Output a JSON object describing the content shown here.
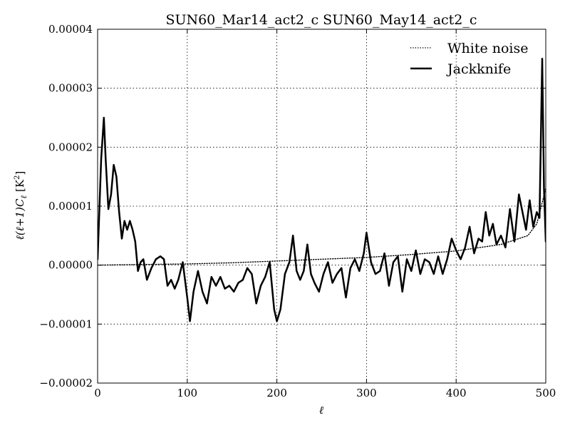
{
  "chart_data": {
    "type": "line",
    "title": "SUN60_Mar14_act2_c SUN60_May14_act2_c",
    "xlabel": "ℓ",
    "ylabel": "ℓ(ℓ+1)C",
    "ylabel_sub": "ℓ",
    "ylabel_units": "[K",
    "ylabel_units_sup": "2",
    "ylabel_units_close": "]",
    "xlim": [
      0,
      500
    ],
    "ylim": [
      -2e-05,
      4e-05
    ],
    "xticks": [
      0,
      100,
      200,
      300,
      400,
      500
    ],
    "xtick_labels": [
      "0",
      "100",
      "200",
      "300",
      "400",
      "500"
    ],
    "yticks": [
      -2e-05,
      -1e-05,
      0.0,
      1e-05,
      2e-05,
      3e-05,
      4e-05
    ],
    "ytick_labels": [
      "−0.00002",
      "−0.00001",
      "0.00000",
      "0.00001",
      "0.00002",
      "0.00003",
      "0.00004"
    ],
    "grid": true,
    "legend_position": "top-right",
    "series": [
      {
        "name": "White noise",
        "style": "dotted",
        "color": "#000000",
        "x": [
          0,
          50,
          100,
          150,
          200,
          250,
          300,
          350,
          400,
          450,
          480,
          490,
          500
        ],
        "y": [
          0.0,
          1e-07,
          2e-07,
          4e-07,
          7e-07,
          1e-06,
          1.3e-06,
          1.8e-06,
          2.4e-06,
          3.5e-06,
          5e-06,
          7e-06,
          1.3e-05
        ]
      },
      {
        "name": "Jackknife",
        "style": "solid",
        "color": "#000000",
        "x": [
          0,
          4,
          7,
          9,
          12,
          15,
          18,
          21,
          24,
          27,
          30,
          33,
          36,
          39,
          42,
          45,
          48,
          51,
          55,
          60,
          65,
          70,
          74,
          78,
          82,
          86,
          90,
          95,
          100,
          103,
          107,
          112,
          117,
          122,
          127,
          132,
          137,
          142,
          147,
          152,
          157,
          162,
          167,
          172,
          177,
          182,
          187,
          192,
          197,
          200,
          204,
          209,
          214,
          218,
          222,
          226,
          230,
          234,
          238,
          242,
          247,
          252,
          257,
          262,
          267,
          272,
          277,
          282,
          287,
          292,
          297,
          300,
          305,
          310,
          315,
          320,
          325,
          330,
          335,
          340,
          345,
          350,
          355,
          360,
          365,
          370,
          375,
          380,
          385,
          390,
          395,
          400,
          405,
          410,
          415,
          420,
          425,
          429,
          433,
          437,
          441,
          445,
          450,
          455,
          460,
          465,
          470,
          474,
          478,
          482,
          486,
          490,
          493,
          496,
          498,
          500
        ],
        "y": [
          1e-06,
          1.8e-05,
          2.5e-05,
          1.8e-05,
          9.5e-06,
          1.2e-05,
          1.7e-05,
          1.5e-05,
          9e-06,
          4.5e-06,
          7.5e-06,
          6e-06,
          7.5e-06,
          6e-06,
          4e-06,
          -1e-06,
          5e-07,
          1e-06,
          -2.5e-06,
          -5e-07,
          1e-06,
          1.5e-06,
          1e-06,
          -3.5e-06,
          -2.5e-06,
          -4e-06,
          -2.5e-06,
          5e-07,
          -5.5e-06,
          -9.5e-06,
          -4.5e-06,
          -1e-06,
          -4.5e-06,
          -6.5e-06,
          -2e-06,
          -3.5e-06,
          -2e-06,
          -4e-06,
          -3.5e-06,
          -4.5e-06,
          -3e-06,
          -2.5e-06,
          -5e-07,
          -1.5e-06,
          -6.5e-06,
          -3.5e-06,
          -2e-06,
          5e-07,
          -7.5e-06,
          -9.5e-06,
          -7.5e-06,
          -1.5e-06,
          5e-07,
          5e-06,
          -1e-06,
          -2.5e-06,
          -1e-06,
          3.5e-06,
          -1.5e-06,
          -3e-06,
          -4.5e-06,
          -1.5e-06,
          5e-07,
          -3e-06,
          -1.5e-06,
          -5e-07,
          -5.5e-06,
          -5e-07,
          1e-06,
          -1e-06,
          2e-06,
          5.5e-06,
          5e-07,
          -1.5e-06,
          -1e-06,
          2e-06,
          -3.5e-06,
          5e-07,
          1.5e-06,
          -4.5e-06,
          1e-06,
          -1e-06,
          2.5e-06,
          -1.5e-06,
          1e-06,
          5e-07,
          -1.5e-06,
          1.5e-06,
          -1.5e-06,
          1e-06,
          4.5e-06,
          2.5e-06,
          1e-06,
          3e-06,
          6.5e-06,
          2e-06,
          4.5e-06,
          4e-06,
          9e-06,
          5e-06,
          7e-06,
          3.5e-06,
          5e-06,
          3e-06,
          9.5e-06,
          4e-06,
          1.2e-05,
          9e-06,
          6e-06,
          1.1e-05,
          6.5e-06,
          9e-06,
          8e-06,
          3.5e-05,
          1.3e-05,
          4e-06
        ]
      }
    ]
  }
}
